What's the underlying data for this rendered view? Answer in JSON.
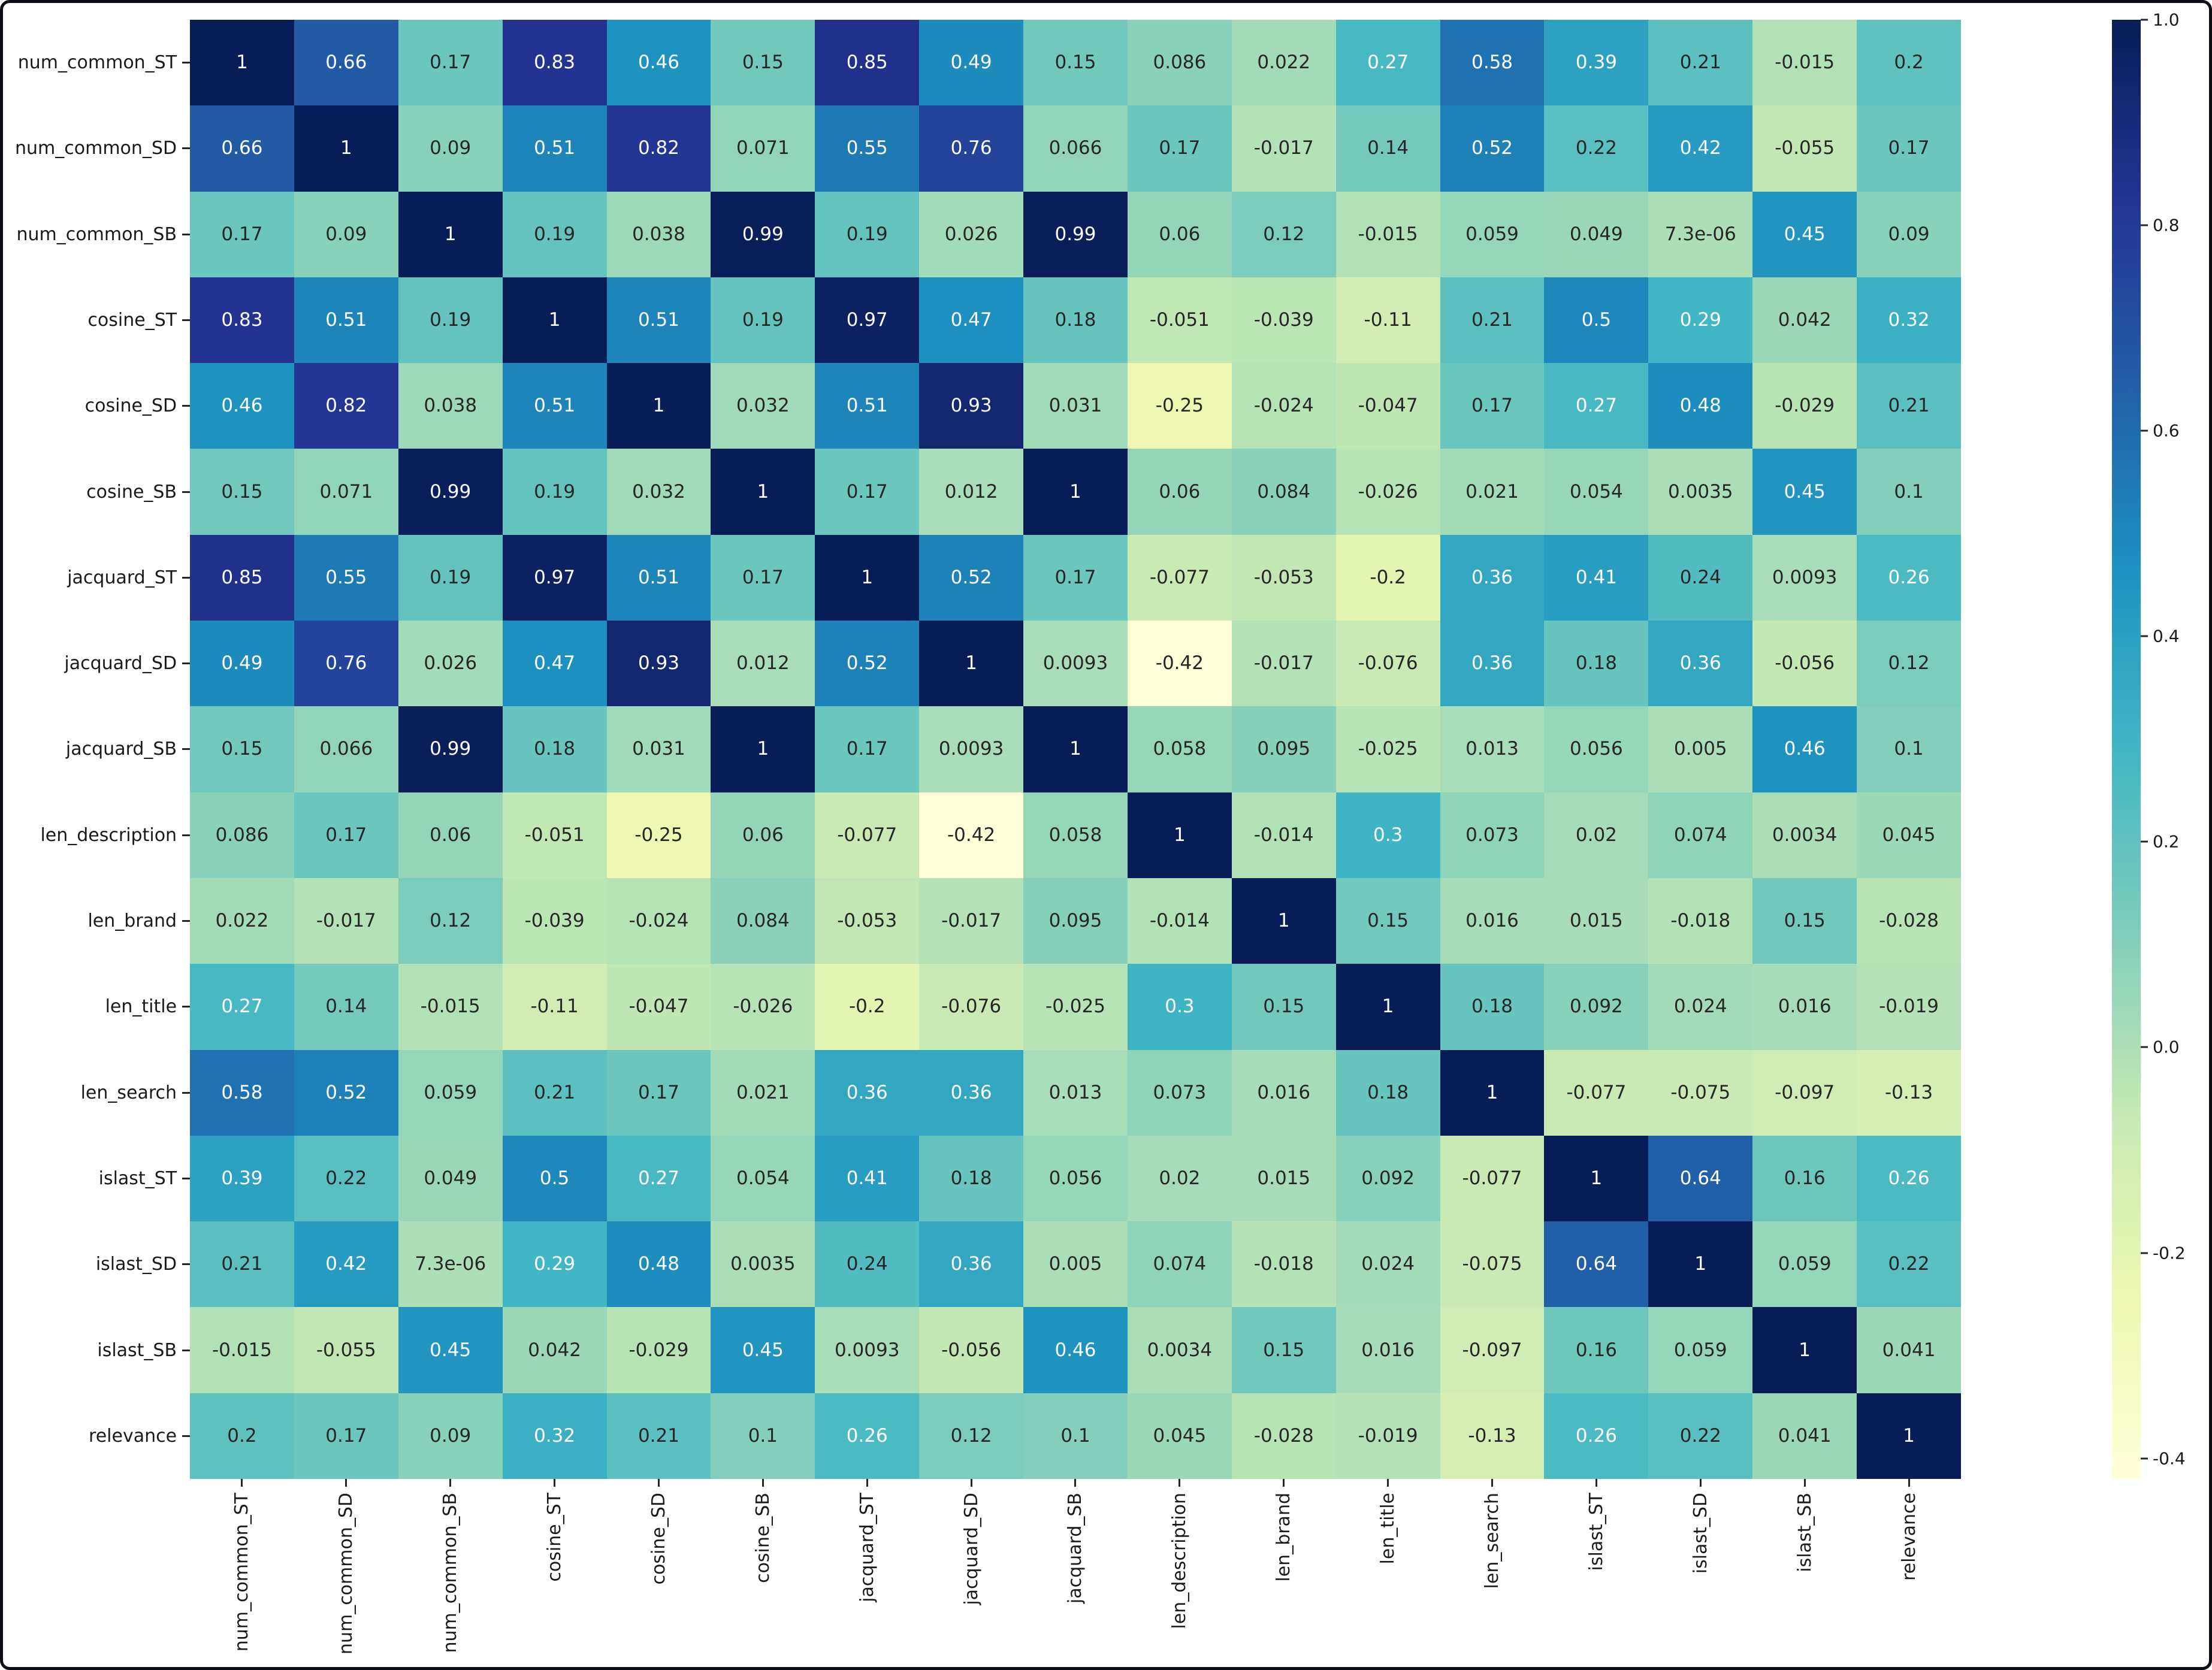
{
  "chart_data": {
    "type": "heatmap",
    "title": "",
    "xlabel": "",
    "ylabel": "",
    "colormap": "YlGnBu",
    "vmin": -0.42,
    "vmax": 1.0,
    "legend_position": "right-colorbar",
    "grid": false,
    "labels": [
      "num_common_ST",
      "num_common_SD",
      "num_common_SB",
      "cosine_ST",
      "cosine_SD",
      "cosine_SB",
      "jacquard_ST",
      "jacquard_SD",
      "jacquard_SB",
      "len_description",
      "len_brand",
      "len_title",
      "len_search",
      "islast_ST",
      "islast_SD",
      "islast_SB",
      "relevance"
    ],
    "matrix": [
      [
        "1",
        "0.66",
        "0.17",
        "0.83",
        "0.46",
        "0.15",
        "0.85",
        "0.49",
        "0.15",
        "0.086",
        "0.022",
        "0.27",
        "0.58",
        "0.39",
        "0.21",
        "-0.015",
        "0.2"
      ],
      [
        "0.66",
        "1",
        "0.09",
        "0.51",
        "0.82",
        "0.071",
        "0.55",
        "0.76",
        "0.066",
        "0.17",
        "-0.017",
        "0.14",
        "0.52",
        "0.22",
        "0.42",
        "-0.055",
        "0.17"
      ],
      [
        "0.17",
        "0.09",
        "1",
        "0.19",
        "0.038",
        "0.99",
        "0.19",
        "0.026",
        "0.99",
        "0.06",
        "0.12",
        "-0.015",
        "0.059",
        "0.049",
        "7.3e-06",
        "0.45",
        "0.09"
      ],
      [
        "0.83",
        "0.51",
        "0.19",
        "1",
        "0.51",
        "0.19",
        "0.97",
        "0.47",
        "0.18",
        "-0.051",
        "-0.039",
        "-0.11",
        "0.21",
        "0.5",
        "0.29",
        "0.042",
        "0.32"
      ],
      [
        "0.46",
        "0.82",
        "0.038",
        "0.51",
        "1",
        "0.032",
        "0.51",
        "0.93",
        "0.031",
        "-0.25",
        "-0.024",
        "-0.047",
        "0.17",
        "0.27",
        "0.48",
        "-0.029",
        "0.21"
      ],
      [
        "0.15",
        "0.071",
        "0.99",
        "0.19",
        "0.032",
        "1",
        "0.17",
        "0.012",
        "1",
        "0.06",
        "0.084",
        "-0.026",
        "0.021",
        "0.054",
        "0.0035",
        "0.45",
        "0.1"
      ],
      [
        "0.85",
        "0.55",
        "0.19",
        "0.97",
        "0.51",
        "0.17",
        "1",
        "0.52",
        "0.17",
        "-0.077",
        "-0.053",
        "-0.2",
        "0.36",
        "0.41",
        "0.24",
        "0.0093",
        "0.26"
      ],
      [
        "0.49",
        "0.76",
        "0.026",
        "0.47",
        "0.93",
        "0.012",
        "0.52",
        "1",
        "0.0093",
        "-0.42",
        "-0.017",
        "-0.076",
        "0.36",
        "0.18",
        "0.36",
        "-0.056",
        "0.12"
      ],
      [
        "0.15",
        "0.066",
        "0.99",
        "0.18",
        "0.031",
        "1",
        "0.17",
        "0.0093",
        "1",
        "0.058",
        "0.095",
        "-0.025",
        "0.013",
        "0.056",
        "0.005",
        "0.46",
        "0.1"
      ],
      [
        "0.086",
        "0.17",
        "0.06",
        "-0.051",
        "-0.25",
        "0.06",
        "-0.077",
        "-0.42",
        "0.058",
        "1",
        "-0.014",
        "0.3",
        "0.073",
        "0.02",
        "0.074",
        "0.0034",
        "0.045"
      ],
      [
        "0.022",
        "-0.017",
        "0.12",
        "-0.039",
        "-0.024",
        "0.084",
        "-0.053",
        "-0.017",
        "0.095",
        "-0.014",
        "1",
        "0.15",
        "0.016",
        "0.015",
        "-0.018",
        "0.15",
        "-0.028"
      ],
      [
        "0.27",
        "0.14",
        "-0.015",
        "-0.11",
        "-0.047",
        "-0.026",
        "-0.2",
        "-0.076",
        "-0.025",
        "0.3",
        "0.15",
        "1",
        "0.18",
        "0.092",
        "0.024",
        "0.016",
        "-0.019"
      ],
      [
        "0.58",
        "0.52",
        "0.059",
        "0.21",
        "0.17",
        "0.021",
        "0.36",
        "0.36",
        "0.013",
        "0.073",
        "0.016",
        "0.18",
        "1",
        "-0.077",
        "-0.075",
        "-0.097",
        "-0.13"
      ],
      [
        "0.39",
        "0.22",
        "0.049",
        "0.5",
        "0.27",
        "0.054",
        "0.41",
        "0.18",
        "0.056",
        "0.02",
        "0.015",
        "0.092",
        "-0.077",
        "1",
        "0.64",
        "0.16",
        "0.26"
      ],
      [
        "0.21",
        "0.42",
        "7.3e-06",
        "0.29",
        "0.48",
        "0.0035",
        "0.24",
        "0.36",
        "0.005",
        "0.074",
        "-0.018",
        "0.024",
        "-0.075",
        "0.64",
        "1",
        "0.059",
        "0.22"
      ],
      [
        "-0.015",
        "-0.055",
        "0.45",
        "0.042",
        "-0.029",
        "0.45",
        "0.0093",
        "-0.056",
        "0.46",
        "0.0034",
        "0.15",
        "0.016",
        "-0.097",
        "0.16",
        "0.059",
        "1",
        "0.041"
      ],
      [
        "0.2",
        "0.17",
        "0.09",
        "0.32",
        "0.21",
        "0.1",
        "0.26",
        "0.12",
        "0.1",
        "0.045",
        "-0.028",
        "-0.019",
        "-0.13",
        "0.26",
        "0.22",
        "0.041",
        "1"
      ]
    ],
    "colorbar_ticks": [
      {
        "label": "1.0",
        "value": 1.0
      },
      {
        "label": "0.8",
        "value": 0.8
      },
      {
        "label": "0.6",
        "value": 0.6
      },
      {
        "label": "0.4",
        "value": 0.4
      },
      {
        "label": "0.2",
        "value": 0.2
      },
      {
        "label": "0.0",
        "value": 0.0
      },
      {
        "label": "-0.2",
        "value": -0.2
      },
      {
        "label": "-0.4",
        "value": -0.4
      }
    ]
  },
  "colors": {
    "cmap_stops": [
      "#ffffd9",
      "#edf8b1",
      "#c7e9b4",
      "#7fcdbb",
      "#41b6c4",
      "#1d91c0",
      "#225ea8",
      "#253494",
      "#081d58"
    ],
    "annotation_dark_text": "#262626",
    "annotation_light_text": "#ffffff",
    "axis_label_color": "#1a1a1a",
    "background": "#ffffff",
    "frame": "#0d0d16"
  }
}
